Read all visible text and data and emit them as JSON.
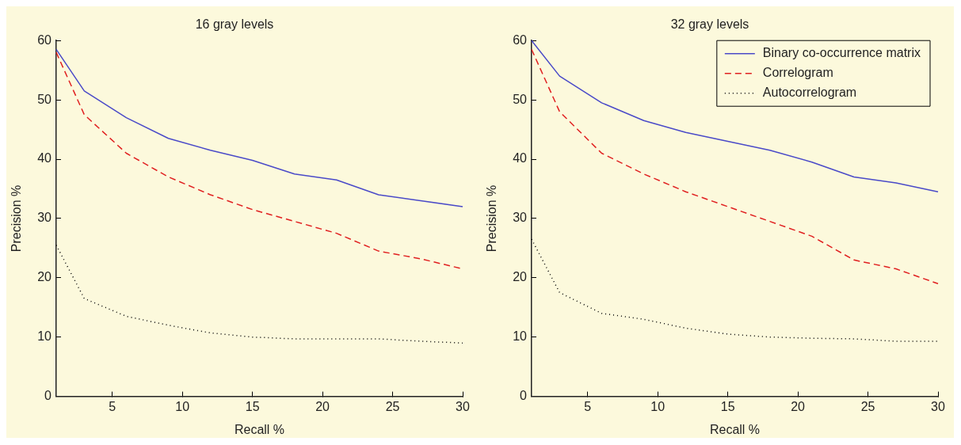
{
  "chart_data": [
    {
      "type": "line",
      "title": "16 gray levels",
      "xlabel": "Recall %",
      "ylabel": "Precision %",
      "xlim": [
        1,
        30
      ],
      "xticks": [
        5,
        10,
        15,
        20,
        25,
        30
      ],
      "ylim": [
        0,
        60
      ],
      "yticks": [
        0,
        10,
        20,
        30,
        40,
        50,
        60
      ],
      "grid": false,
      "legend": false,
      "marker": "none",
      "x": [
        1,
        3,
        6,
        9,
        12,
        15,
        18,
        21,
        24,
        27,
        30
      ],
      "series": [
        {
          "color": "#4a4ac8",
          "line_style": "solid",
          "values": [
            58.5,
            51.5,
            47,
            43.5,
            41.5,
            39.8,
            37.5,
            36.5,
            34,
            33,
            32
          ]
        },
        {
          "color": "#e02020",
          "line_style": "dashed",
          "values": [
            58,
            47.5,
            41,
            37,
            34,
            31.5,
            29.5,
            27.5,
            24.5,
            23.2,
            21.5
          ]
        },
        {
          "color": "#000000",
          "line_style": "dotted",
          "values": [
            25.5,
            16.5,
            13.5,
            12,
            10.7,
            10,
            9.7,
            9.7,
            9.7,
            9.3,
            9
          ]
        }
      ]
    },
    {
      "type": "line",
      "title": "32 gray levels",
      "xlabel": "Recall %",
      "ylabel": "Precision %",
      "xlim": [
        1,
        30
      ],
      "xticks": [
        5,
        10,
        15,
        20,
        25,
        30
      ],
      "ylim": [
        0,
        60
      ],
      "yticks": [
        0,
        10,
        20,
        30,
        40,
        50,
        60
      ],
      "grid": false,
      "legend": "top right",
      "marker": "none",
      "x": [
        1,
        3,
        6,
        9,
        12,
        15,
        18,
        21,
        24,
        27,
        30
      ],
      "series": [
        {
          "name": "Binary co-occurrence matrix",
          "color": "#4a4ac8",
          "line_style": "solid",
          "values": [
            60,
            54,
            49.5,
            46.5,
            44.5,
            43,
            41.5,
            39.5,
            37,
            36,
            34.5
          ]
        },
        {
          "name": "Correlogram",
          "color": "#e02020",
          "line_style": "dashed",
          "values": [
            58.5,
            48,
            41,
            37.5,
            34.5,
            32,
            29.5,
            27,
            23,
            21.5,
            19
          ]
        },
        {
          "name": "Autocorrelogram",
          "color": "#000000",
          "line_style": "dotted",
          "values": [
            26.5,
            17.5,
            14,
            13,
            11.5,
            10.5,
            10,
            9.8,
            9.7,
            9.3,
            9.3
          ]
        }
      ]
    }
  ]
}
